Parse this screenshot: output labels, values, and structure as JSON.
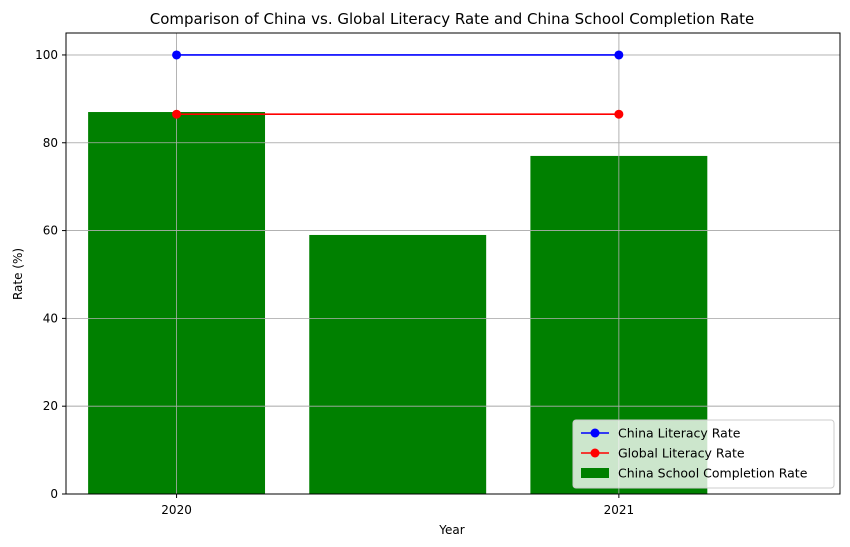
{
  "chart_data": {
    "type": "bar",
    "title": "Comparison of China vs. Global Literacy Rate and China School Completion Rate",
    "xlabel": "Year",
    "ylabel": "Rate (%)",
    "x_ticks": [
      "2020",
      "2021"
    ],
    "y_ticks": [
      "0",
      "20",
      "40",
      "60",
      "80",
      "100"
    ],
    "xlim": [
      2019.75,
      2021.5
    ],
    "ylim": [
      0,
      105
    ],
    "grid": true,
    "legend_position": "lower-right",
    "bars": {
      "name": "China School Completion Rate",
      "color": "#008000",
      "x": [
        2020,
        2020.5,
        2021
      ],
      "values": [
        87,
        59,
        77
      ]
    },
    "series": [
      {
        "name": "China Literacy Rate",
        "color": "#0000ff",
        "x": [
          2020,
          2021
        ],
        "values": [
          100,
          100
        ]
      },
      {
        "name": "Global Literacy Rate",
        "color": "#ff0000",
        "x": [
          2020,
          2021
        ],
        "values": [
          86.5,
          86.5
        ]
      }
    ]
  }
}
